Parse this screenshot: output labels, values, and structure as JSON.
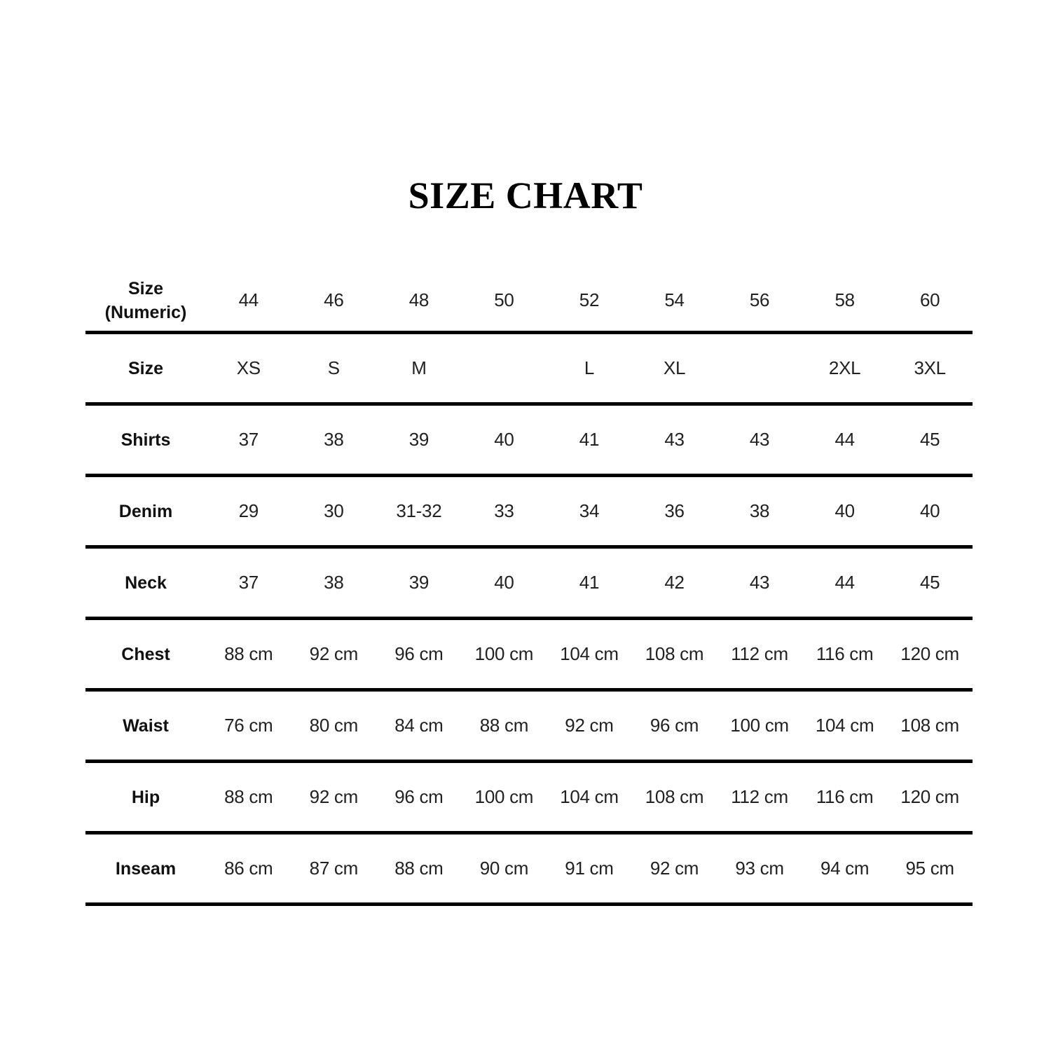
{
  "title": "SIZE CHART",
  "table": {
    "header": {
      "label": "Size (Numeric)",
      "values": [
        "44",
        "46",
        "48",
        "50",
        "52",
        "54",
        "56",
        "58",
        "60"
      ]
    },
    "rows": [
      {
        "label": "Size",
        "values": [
          "XS",
          "S",
          "M",
          "",
          "L",
          "XL",
          "",
          "2XL",
          "3XL"
        ]
      },
      {
        "label": "Shirts",
        "values": [
          "37",
          "38",
          "39",
          "40",
          "41",
          "43",
          "43",
          "44",
          "45"
        ]
      },
      {
        "label": "Denim",
        "values": [
          "29",
          "30",
          "31-32",
          "33",
          "34",
          "36",
          "38",
          "40",
          "40"
        ]
      },
      {
        "label": "Neck",
        "values": [
          "37",
          "38",
          "39",
          "40",
          "41",
          "42",
          "43",
          "44",
          "45"
        ]
      },
      {
        "label": "Chest",
        "values": [
          "88 cm",
          "92 cm",
          "96 cm",
          "100 cm",
          "104 cm",
          "108 cm",
          "112 cm",
          "116 cm",
          "120 cm"
        ]
      },
      {
        "label": "Waist",
        "values": [
          "76 cm",
          "80 cm",
          "84 cm",
          "88 cm",
          "92 cm",
          "96 cm",
          "100 cm",
          "104 cm",
          "108 cm"
        ]
      },
      {
        "label": "Hip",
        "values": [
          "88 cm",
          "92 cm",
          "96 cm",
          "100 cm",
          "104 cm",
          "108 cm",
          "112 cm",
          "116 cm",
          "120 cm"
        ]
      },
      {
        "label": "Inseam",
        "values": [
          "86 cm",
          "87 cm",
          "88 cm",
          "90 cm",
          "91 cm",
          "92 cm",
          "93 cm",
          "94 cm",
          "95 cm"
        ]
      }
    ]
  }
}
